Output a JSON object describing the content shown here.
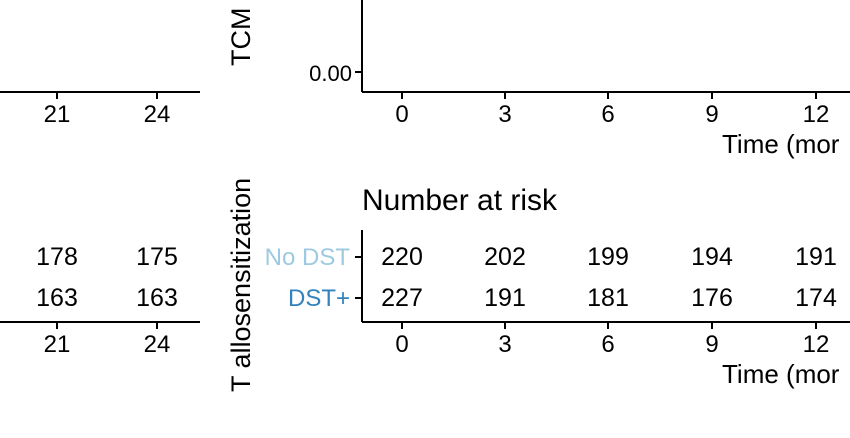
{
  "chart_data": [
    {
      "type": "line",
      "panel": "left-survival-fragment",
      "x_ticks": [
        "21",
        "24"
      ],
      "series": []
    },
    {
      "type": "table",
      "panel": "left-risk-table-fragment",
      "x_ticks": [
        "21",
        "24"
      ],
      "rows": [
        {
          "values": [
            178,
            175
          ]
        },
        {
          "values": [
            163,
            163
          ]
        }
      ]
    },
    {
      "type": "line",
      "panel": "right-survival-fragment",
      "ylabel": "TCM",
      "y_ticks": [
        "0.00"
      ],
      "x_ticks": [
        "0",
        "3",
        "6",
        "9",
        "12"
      ],
      "xlabel": "Time (mor",
      "series": []
    },
    {
      "type": "table",
      "panel": "right-risk-table",
      "title": "Number at risk",
      "side_label": "T allosensitization",
      "x_ticks": [
        "0",
        "3",
        "6",
        "9",
        "12"
      ],
      "xlabel": "Time (mor",
      "rows": [
        {
          "name": "No DST",
          "color": "#9ecae1",
          "values": [
            220,
            202,
            199,
            194,
            191
          ]
        },
        {
          "name": "DST+",
          "color": "#3182bd",
          "values": [
            227,
            191,
            181,
            176,
            174
          ]
        }
      ]
    }
  ]
}
